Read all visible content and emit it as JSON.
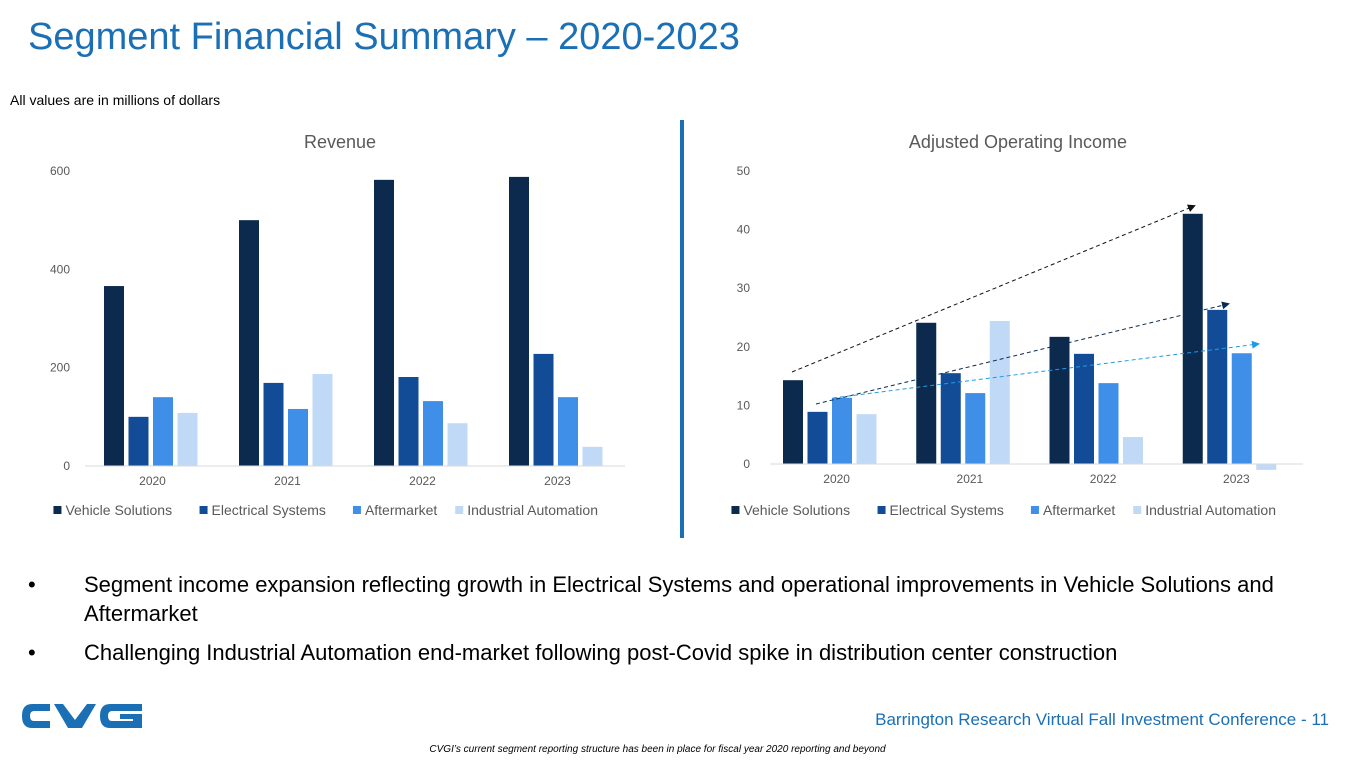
{
  "title": "Segment Financial Summary – 2020-2023",
  "units_note": "All values are in millions of dollars",
  "colors": {
    "accent": "#1a6fb5",
    "vehicle_solutions": "#0b2a4e",
    "electrical_systems": "#124c96",
    "aftermarket": "#3f8ee8",
    "industrial_automation": "#bfd9f6"
  },
  "chart_data": [
    {
      "type": "bar",
      "title": "Revenue",
      "categories": [
        "2020",
        "2021",
        "2022",
        "2023"
      ],
      "ylim": [
        0,
        600
      ],
      "yticks": [
        "0",
        "200",
        "400",
        "600"
      ],
      "legend_position": "bottom",
      "series": [
        {
          "name": "Vehicle Solutions",
          "values": [
            366,
            500,
            582,
            588
          ]
        },
        {
          "name": "Electrical Systems",
          "values": [
            100,
            169,
            181,
            228
          ]
        },
        {
          "name": "Aftermarket",
          "values": [
            140,
            116,
            132,
            140
          ]
        },
        {
          "name": "Industrial Automation",
          "values": [
            108,
            187,
            87,
            39
          ]
        }
      ]
    },
    {
      "type": "bar",
      "title": "Adjusted Operating Income",
      "categories": [
        "2020",
        "2021",
        "2022",
        "2023"
      ],
      "ylim": [
        0,
        50
      ],
      "yticks": [
        "0",
        "10",
        "20",
        "30",
        "40",
        "50"
      ],
      "legend_position": "bottom",
      "series": [
        {
          "name": "Vehicle Solutions",
          "values": [
            14.3,
            24.1,
            21.7,
            42.7
          ]
        },
        {
          "name": "Electrical Systems",
          "values": [
            8.9,
            15.5,
            18.8,
            26.3
          ]
        },
        {
          "name": "Aftermarket",
          "values": [
            11.3,
            12.1,
            13.8,
            18.9
          ]
        },
        {
          "name": "Industrial Automation",
          "values": [
            8.5,
            24.4,
            4.6,
            -1.0
          ]
        }
      ]
    }
  ],
  "bullets": [
    "Segment income expansion reflecting growth in Electrical Systems and operational improvements in Vehicle Solutions and Aftermarket",
    "Challenging Industrial Automation end-market following post-Covid spike in distribution center construction"
  ],
  "bullet_glyph": "•",
  "logo_text": "CVG",
  "footer": "Barrington Research Virtual Fall Investment Conference - 11",
  "footnote": "CVGI’s current segment reporting structure has been in place for fiscal year 2020 reporting and beyond"
}
